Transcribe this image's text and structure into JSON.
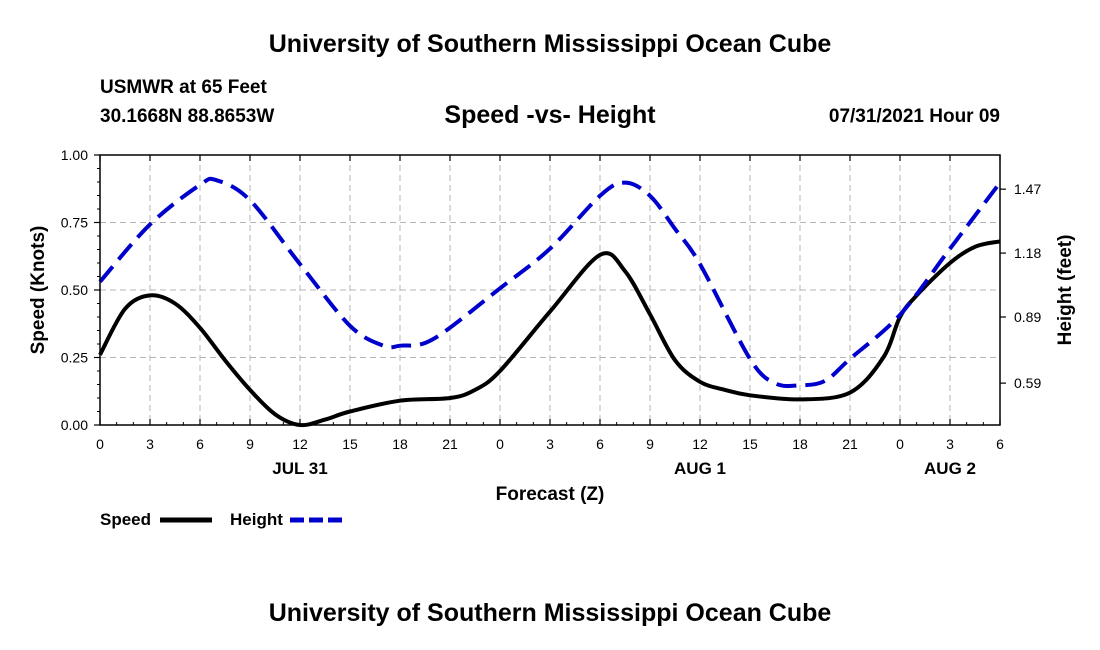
{
  "header": {
    "title": "University of Southern Mississippi Ocean Cube",
    "station": "USMWR at 65 Feet",
    "coords": "30.1668N  88.8653W",
    "datetime": "07/31/2021 Hour 09"
  },
  "footer": {
    "title": "University of Southern Mississippi Ocean Cube"
  },
  "colors": {
    "speed": "#000000",
    "height": "#0000cc",
    "grid": "#b4b4b4"
  },
  "chart_data": {
    "type": "line",
    "title": "Speed -vs- Height",
    "xlabel": "Forecast (Z)",
    "ylabel": "Speed (Knots)",
    "y2label": "Height (feet)",
    "x_ticks": [
      0,
      3,
      6,
      9,
      12,
      15,
      18,
      21,
      24,
      27,
      30,
      33,
      36,
      39,
      42,
      45,
      48,
      51,
      54
    ],
    "x_tick_labels": [
      "0",
      "3",
      "6",
      "9",
      "12",
      "15",
      "18",
      "21",
      "0",
      "3",
      "6",
      "9",
      "12",
      "15",
      "18",
      "21",
      "0",
      "3",
      "6"
    ],
    "date_labels": [
      {
        "x": 12,
        "label": "JUL 31"
      },
      {
        "x": 36,
        "label": "AUG 1"
      },
      {
        "x": 51,
        "label": "AUG 2"
      }
    ],
    "xlim": [
      0,
      54
    ],
    "ylim": [
      0,
      1.0
    ],
    "y_ticks": [
      0,
      0.25,
      0.5,
      0.75,
      1.0
    ],
    "y_tick_labels": [
      "0.00",
      "0.25",
      "0.50",
      "0.75",
      "1.00"
    ],
    "y2lim": [
      0.4,
      1.625
    ],
    "y2_ticks": [
      0.59,
      0.89,
      1.18,
      1.47
    ],
    "y2_tick_labels": [
      "0.59",
      "0.89",
      "1.18",
      "1.47"
    ],
    "legend": {
      "position": "bottom-left",
      "entries": [
        "Speed",
        "Height"
      ]
    },
    "series": [
      {
        "name": "Speed",
        "axis": "left",
        "style": "solid",
        "x": [
          0,
          1.5,
          3,
          4.5,
          6,
          7.5,
          9,
          10.5,
          12,
          13.5,
          15,
          18,
          21,
          22.5,
          24,
          27,
          30,
          31.5,
          33,
          34.5,
          36,
          37.5,
          39,
          42,
          45,
          47,
          48,
          49,
          51,
          52.5,
          54
        ],
        "values": [
          0.26,
          0.43,
          0.48,
          0.45,
          0.36,
          0.24,
          0.13,
          0.04,
          0.0,
          0.02,
          0.05,
          0.09,
          0.1,
          0.13,
          0.2,
          0.42,
          0.63,
          0.57,
          0.41,
          0.24,
          0.16,
          0.13,
          0.11,
          0.095,
          0.12,
          0.25,
          0.4,
          0.48,
          0.6,
          0.66,
          0.68
        ]
      },
      {
        "name": "Height",
        "axis": "right",
        "style": "dashed",
        "x": [
          0,
          3,
          6,
          7,
          9,
          12,
          15,
          17,
          18,
          20,
          24,
          27,
          30,
          31.5,
          33,
          34.5,
          36,
          39,
          40.5,
          42,
          43.5,
          45,
          48,
          51,
          54
        ],
        "values": [
          1.05,
          1.31,
          1.49,
          1.51,
          1.42,
          1.13,
          0.85,
          0.76,
          0.76,
          0.79,
          1.02,
          1.2,
          1.44,
          1.5,
          1.44,
          1.29,
          1.13,
          0.7,
          0.59,
          0.58,
          0.6,
          0.7,
          0.9,
          1.2,
          1.5
        ]
      }
    ]
  }
}
